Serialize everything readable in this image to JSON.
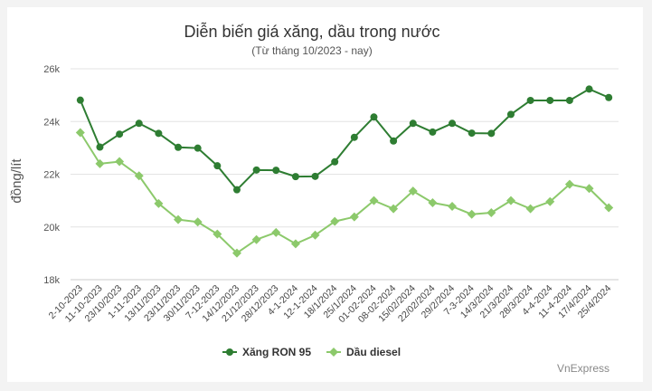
{
  "chart_data": {
    "type": "line",
    "title": "Diễn biến giá xăng, dầu trong nước",
    "subtitle": "(Từ tháng 10/2023 - nay)",
    "ylabel": "đồng/lít",
    "ylim": [
      18000,
      26000
    ],
    "yticks": [
      18000,
      20000,
      22000,
      24000,
      26000
    ],
    "ytick_labels": [
      "18k",
      "20k",
      "22k",
      "24k",
      "26k"
    ],
    "grid": true,
    "legend_position": "bottom",
    "categories": [
      "2-10-2023",
      "11-10-2023",
      "23/10/2023",
      "1-11-2023",
      "13/11/2023",
      "23/11/2023",
      "30/11/2023",
      "7-12-2023",
      "14/12/2023",
      "21/12/2023",
      "28/12/2023",
      "4-1-2024",
      "12-1-2024",
      "18/1/2024",
      "25/1/2024",
      "01-02-2024",
      "08-02-2024",
      "15/02/2024",
      "22/02/2024",
      "29/2/2024",
      "7-3-2024",
      "14/3/2024",
      "21/3/2024",
      "28/3/2024",
      "4-4-2024",
      "11-4-2024",
      "17/4/2024",
      "25/4/2024"
    ],
    "series": [
      {
        "name": "Xăng RON 95",
        "color": "#2e7d32",
        "values": [
          24810,
          23030,
          23520,
          23930,
          23550,
          23020,
          22990,
          22320,
          21410,
          22160,
          22150,
          21910,
          21920,
          22470,
          23400,
          24170,
          23260,
          23930,
          23600,
          23930,
          23560,
          23550,
          24270,
          24800,
          24800,
          24800,
          25230,
          24910
        ]
      },
      {
        "name": "Dầu diesel",
        "color": "#8cc96b",
        "values": [
          23580,
          22400,
          22480,
          21940,
          20890,
          20280,
          20190,
          19730,
          19010,
          19520,
          19790,
          19360,
          19690,
          20210,
          20380,
          21000,
          20690,
          21360,
          20920,
          20780,
          20480,
          20540,
          21000,
          20690,
          20960,
          21620,
          21460,
          20730
        ]
      }
    ]
  },
  "credits": "VnExpress"
}
